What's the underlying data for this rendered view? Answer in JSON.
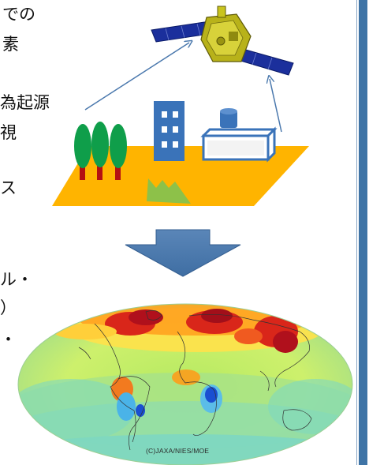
{
  "text_fragments": [
    "での",
    "素",
    "為起源",
    "視",
    "ス",
    "ル・",
    "）",
    "・"
  ],
  "credit": "(C)JAXA/NIES/MOE",
  "icons": {
    "satellite": "satellite-icon",
    "trees": "tree-icon",
    "building": "office-building-icon",
    "factory": "factory-icon",
    "grass": "grass-icon",
    "arrow": "down-arrow-icon",
    "map": "world-co2-map"
  },
  "colors": {
    "ground": "#ffb400",
    "tree": "#0f9e4a",
    "trunk": "#b40f12",
    "building": "#3a73b9",
    "arrow": "#4a78ad",
    "side_bar": "#3f74a6",
    "map_base": "#c6ef6a"
  }
}
